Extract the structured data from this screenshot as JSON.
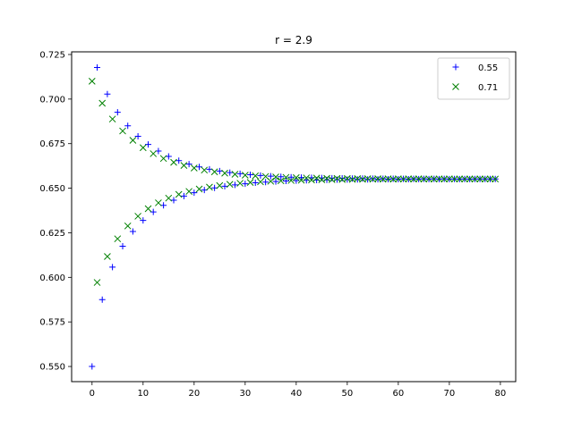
{
  "chart_data": {
    "type": "scatter",
    "title": "r = 2.9",
    "xlabel": "",
    "ylabel": "",
    "xlim": [
      -4,
      83
    ],
    "ylim": [
      0.5415,
      0.7265
    ],
    "xticks": [
      0,
      10,
      20,
      30,
      40,
      50,
      60,
      70,
      80
    ],
    "yticks": [
      0.55,
      0.575,
      0.6,
      0.625,
      0.65,
      0.675,
      0.7,
      0.725
    ],
    "ytick_labels": [
      "0.550",
      "0.575",
      "0.600",
      "0.625",
      "0.650",
      "0.675",
      "0.700",
      "0.725"
    ],
    "grid": false,
    "legend": "top-right",
    "model": "logistic map x[n+1] = r*x[n]*(1-x[n]), n = 0..79",
    "r": 2.9,
    "series": [
      {
        "name": "0.55",
        "x0": 0.55,
        "marker": "plus",
        "color": "#0000ff"
      },
      {
        "name": "0.71",
        "x0": 0.71,
        "marker": "x",
        "color": "#008000"
      }
    ]
  }
}
